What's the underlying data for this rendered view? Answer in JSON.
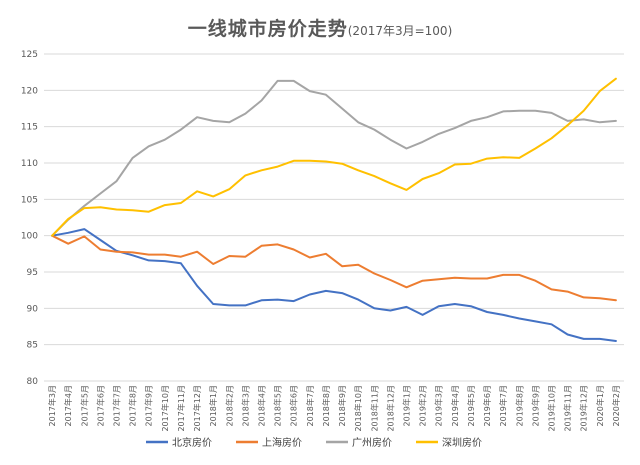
{
  "chart_data": {
    "type": "line",
    "title": "一线城市房价走势",
    "subtitle": "(2017年3月=100)",
    "xlabel": "",
    "ylabel": "",
    "ylim": [
      80,
      125
    ],
    "yticks": [
      80,
      85,
      90,
      95,
      100,
      105,
      110,
      115,
      120,
      125
    ],
    "grid": true,
    "legend_position": "bottom",
    "categories": [
      "2017年3月",
      "2017年4月",
      "2017年5月",
      "2017年6月",
      "2017年7月",
      "2017年8月",
      "2017年9月",
      "2017年10月",
      "2017年11月",
      "2017年12月",
      "2018年1月",
      "2018年2月",
      "2018年3月",
      "2018年4月",
      "2018年5月",
      "2018年6月",
      "2018年7月",
      "2018年8月",
      "2018年9月",
      "2018年10月",
      "2018年11月",
      "2018年12月",
      "2019年1月",
      "2019年2月",
      "2019年3月",
      "2019年4月",
      "2019年5月",
      "2019年6月",
      "2019年7月",
      "2019年8月",
      "2019年9月",
      "2019年10月",
      "2019年11月",
      "2019年12月",
      "2020年1月",
      "2020年2月"
    ],
    "series": [
      {
        "name": "北京房价",
        "color": "#4472C4",
        "values": [
          100,
          100.4,
          100.9,
          99.4,
          97.9,
          97.3,
          96.6,
          96.5,
          96.2,
          93.1,
          90.6,
          90.4,
          90.4,
          91.1,
          91.2,
          91.0,
          91.9,
          92.4,
          92.1,
          91.2,
          90.0,
          89.7,
          90.2,
          89.1,
          90.3,
          90.6,
          90.3,
          89.5,
          89.1,
          88.6,
          88.2,
          87.8,
          86.4,
          85.8,
          85.8,
          85.5
        ]
      },
      {
        "name": "上海房价",
        "color": "#ED7D31",
        "values": [
          100,
          98.9,
          99.9,
          98.1,
          97.8,
          97.7,
          97.4,
          97.4,
          97.1,
          97.8,
          96.1,
          97.2,
          97.1,
          98.6,
          98.8,
          98.1,
          97.0,
          97.5,
          95.8,
          96.0,
          94.8,
          93.9,
          92.9,
          93.8,
          94.0,
          94.2,
          94.1,
          94.1,
          94.6,
          94.6,
          93.8,
          92.6,
          92.3,
          91.5,
          91.4,
          91.1
        ]
      },
      {
        "name": "广州房价",
        "color": "#A5A5A5",
        "values": [
          100,
          102.2,
          104.1,
          105.8,
          107.5,
          110.7,
          112.3,
          113.2,
          114.6,
          116.3,
          115.8,
          115.6,
          116.8,
          118.6,
          121.3,
          121.3,
          119.9,
          119.4,
          117.5,
          115.6,
          114.6,
          113.2,
          112.0,
          112.9,
          114.0,
          114.8,
          115.8,
          116.3,
          117.1,
          117.2,
          117.2,
          116.9,
          115.8,
          116.0,
          115.6,
          115.8
        ]
      },
      {
        "name": "深圳房价",
        "color": "#FFC000",
        "values": [
          100,
          102.3,
          103.8,
          103.9,
          103.6,
          103.5,
          103.3,
          104.2,
          104.5,
          106.1,
          105.4,
          106.4,
          108.3,
          109.0,
          109.5,
          110.3,
          110.3,
          110.2,
          109.9,
          109.0,
          108.2,
          107.2,
          106.3,
          107.8,
          108.6,
          109.8,
          109.9,
          110.6,
          110.8,
          110.7,
          112.0,
          113.4,
          115.2,
          117.2,
          119.9,
          121.6
        ]
      }
    ]
  }
}
